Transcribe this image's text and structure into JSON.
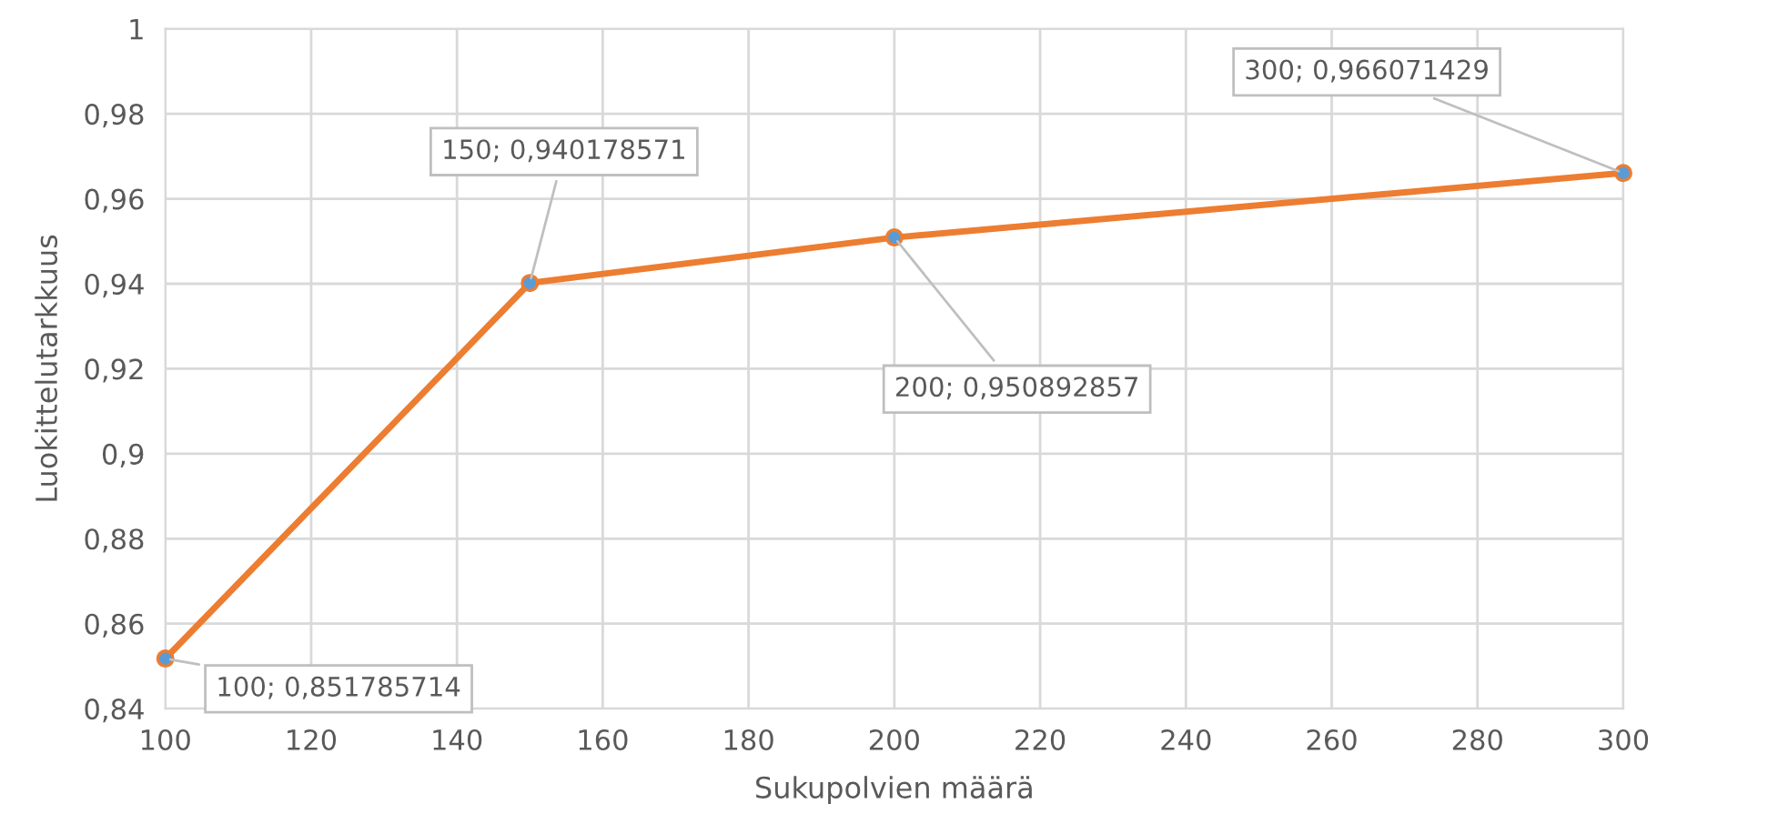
{
  "chart_data": {
    "type": "line",
    "xlabel": "Sukupolvien määrä",
    "ylabel": "Luokittelutarkkuus",
    "x": [
      100,
      150,
      200,
      300
    ],
    "series": [
      {
        "color": "#ed7d31",
        "colors": [
          "#5b9bd5",
          "#5b9bd5",
          "#5b9bd5",
          "#5b9bd5"
        ],
        "values": [
          0.851785714,
          0.940178571,
          0.950892857,
          0.966071429
        ],
        "value_labels": [
          "100; 0,851785714",
          "150; 0,940178571",
          "200; 0,950892857",
          "300; 0,966071429"
        ]
      }
    ],
    "xlim": [
      100,
      300
    ],
    "xticks": [
      100,
      120,
      140,
      160,
      180,
      200,
      220,
      240,
      260,
      280,
      300
    ],
    "ylim": [
      0.84,
      1
    ],
    "yticks": [
      {
        "value": 0.84,
        "label": "0,84"
      },
      {
        "value": 0.86,
        "label": "0,86"
      },
      {
        "value": 0.88,
        "label": "0,88"
      },
      {
        "value": 0.9,
        "label": "0,9"
      },
      {
        "value": 0.92,
        "label": "0,92"
      },
      {
        "value": 0.94,
        "label": "0,94"
      },
      {
        "value": 0.96,
        "label": "0,96"
      },
      {
        "value": 0.98,
        "label": "0,98"
      },
      {
        "value": 1,
        "label": "1"
      }
    ],
    "grid": true,
    "marker": "circle",
    "line_style": "solid",
    "legend": false
  }
}
